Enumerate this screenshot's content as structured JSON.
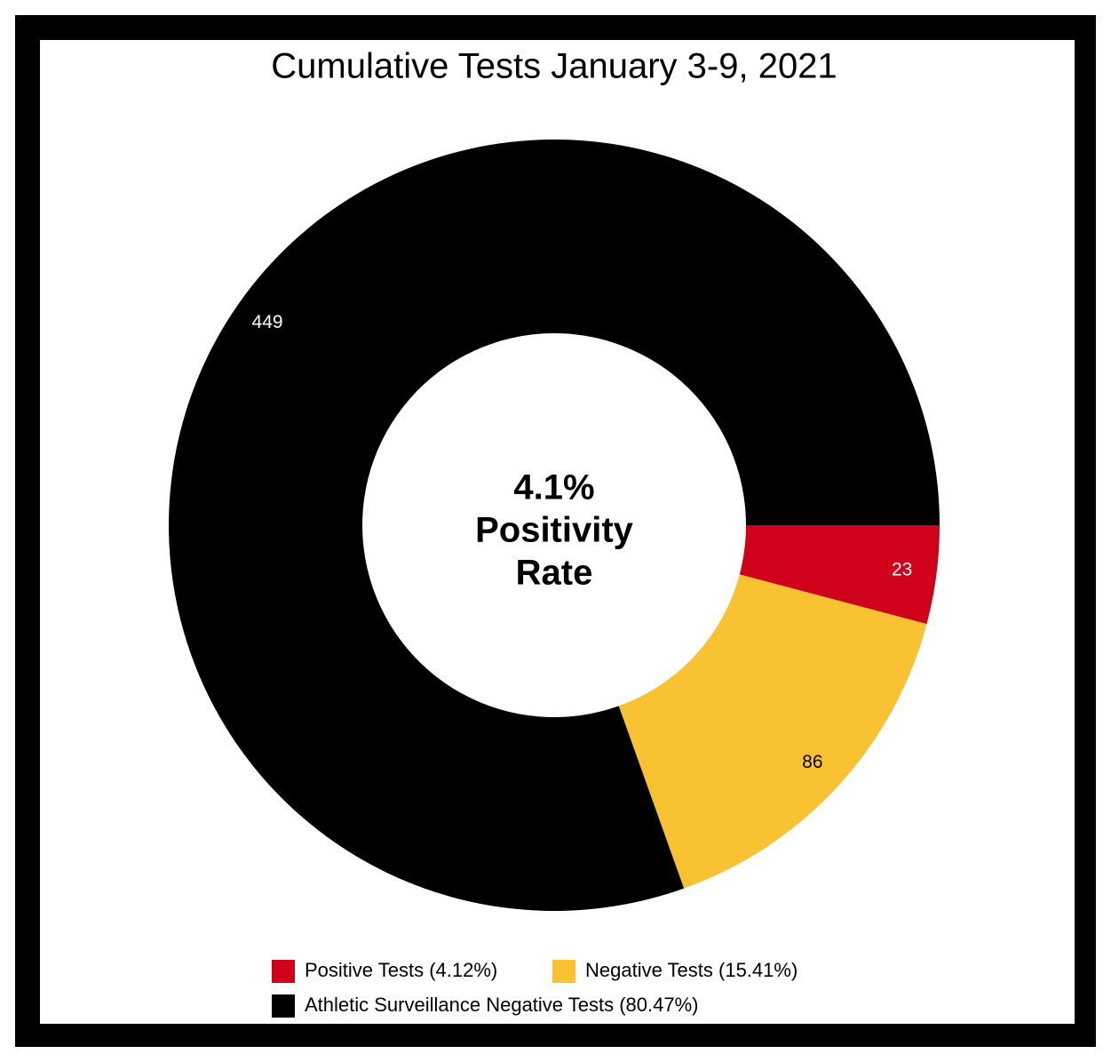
{
  "chart_data": {
    "type": "donut",
    "title": "Cumulative Tests January 3-9, 2021",
    "categories": [
      "Positive Tests (4.12%)",
      "Negative Tests (15.41%)",
      "Athletic Surveillance Negative Tests (80.47%)"
    ],
    "values": [
      23,
      86,
      449
    ],
    "colors": [
      "#d0021b",
      "#f9c232",
      "#000000"
    ],
    "center_label": [
      "4.1%",
      "Positivity",
      "Rate"
    ],
    "legend": "bottom"
  }
}
